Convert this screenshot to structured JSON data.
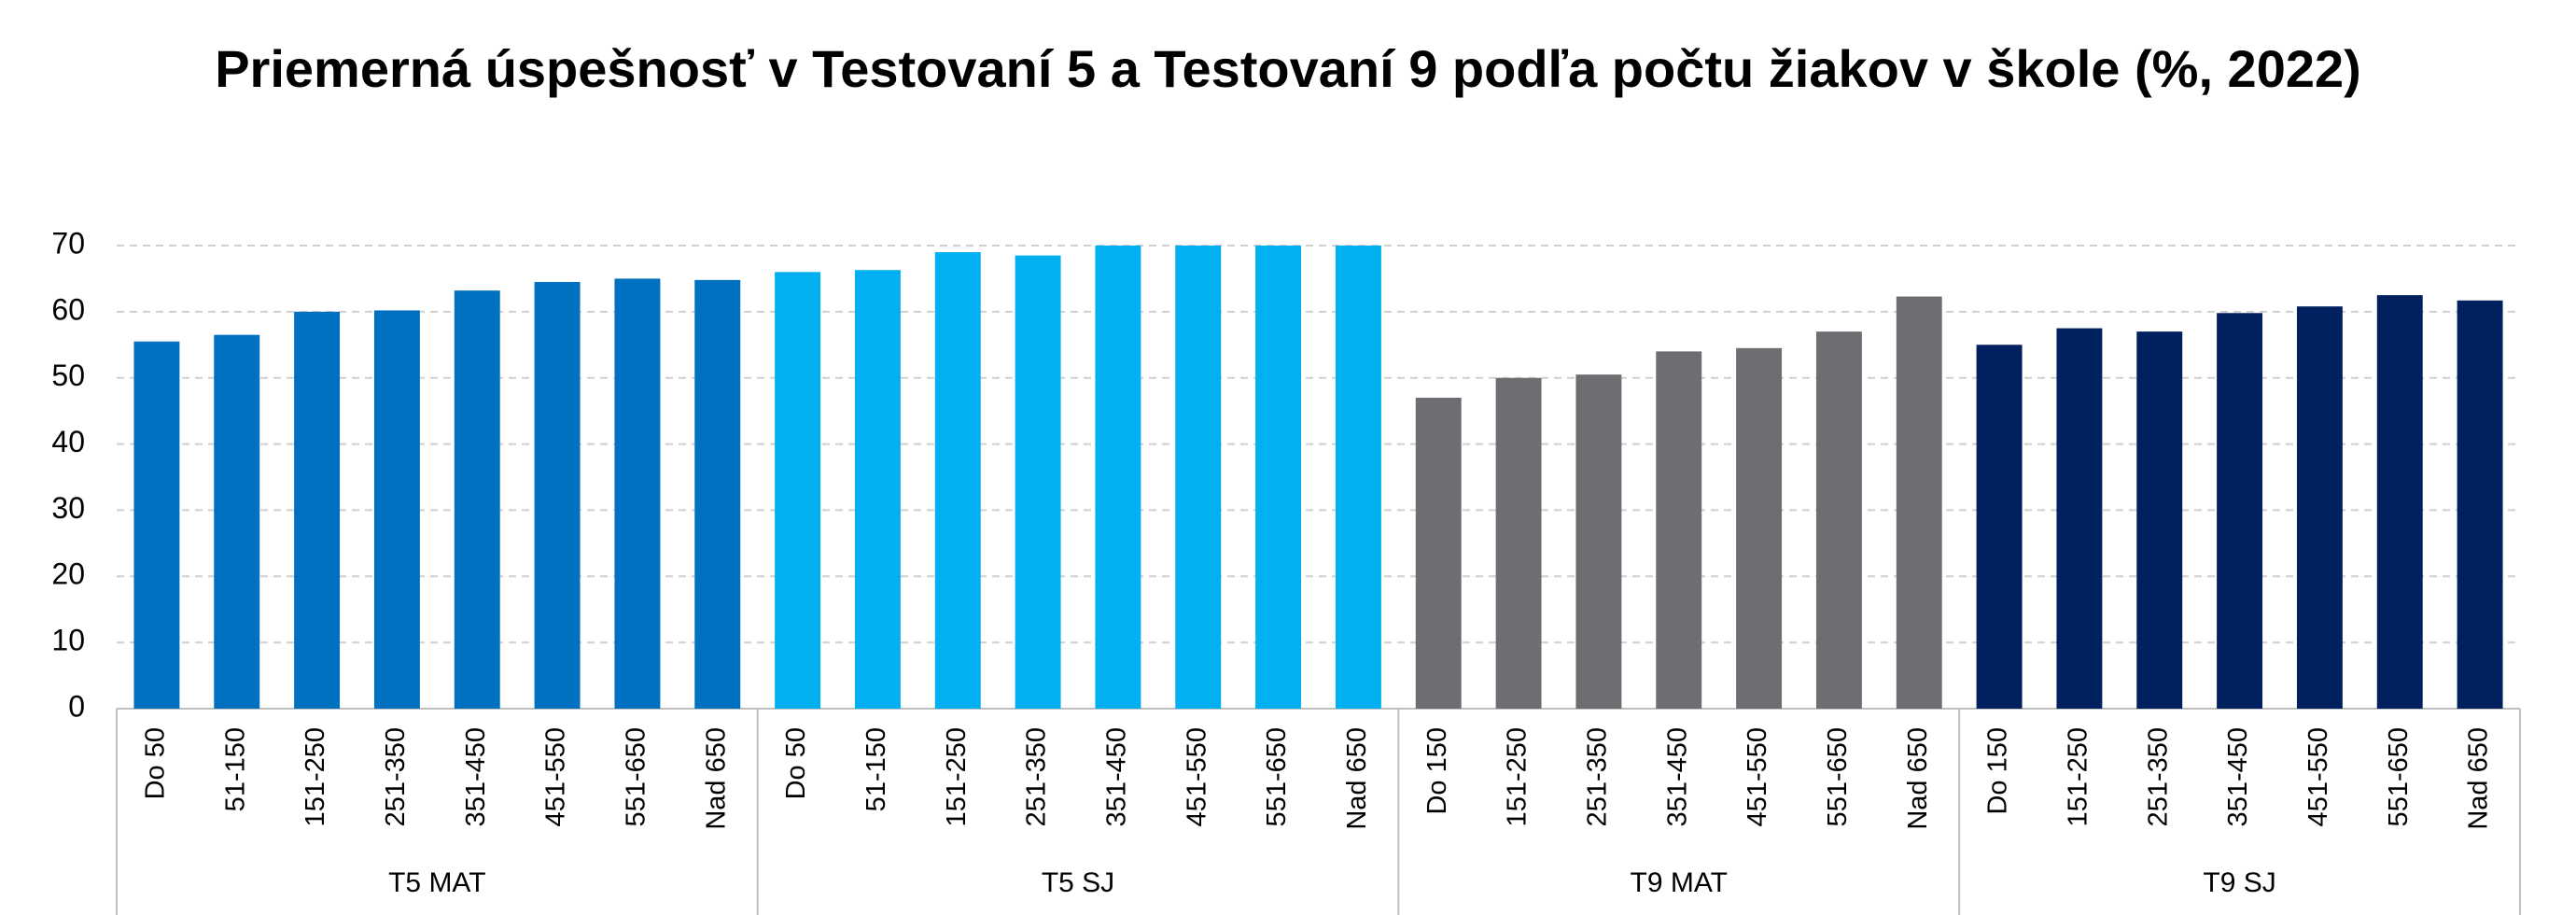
{
  "chart_data": {
    "type": "bar",
    "title": "Priemerná úspešnosť v Testovaní 5 a Testovaní 9 podľa počtu žiakov v škole (%, 2022)",
    "ylim": [
      0,
      70
    ],
    "yticks": [
      0,
      10,
      20,
      30,
      40,
      50,
      60,
      70
    ],
    "grid": true,
    "series": [
      {
        "name": "T5 MAT",
        "color": "#0070c0",
        "categories": [
          "Do 50",
          "51-150",
          "151-250",
          "251-350",
          "351-450",
          "451-550",
          "551-650",
          "Nad 650"
        ],
        "values": [
          55.5,
          56.5,
          60,
          60.2,
          63.2,
          64.5,
          65,
          64.8
        ]
      },
      {
        "name": "T5 SJ",
        "color": "#00b0f0",
        "categories": [
          "Do 50",
          "51-150",
          "151-250",
          "251-350",
          "351-450",
          "451-550",
          "551-650",
          "Nad 650"
        ],
        "values": [
          66,
          66.3,
          69,
          68.5,
          70,
          70,
          70,
          70
        ]
      },
      {
        "name": "T9 MAT",
        "color": "#6d6e71",
        "categories": [
          "Do 150",
          "151-250",
          "251-350",
          "351-450",
          "451-550",
          "551-650",
          "Nad 650"
        ],
        "values": [
          47,
          50,
          50.5,
          54,
          54.5,
          57,
          62.3
        ]
      },
      {
        "name": "T9 SJ",
        "color": "#002060",
        "categories": [
          "Do 150",
          "151-250",
          "251-350",
          "351-450",
          "451-550",
          "551-650",
          "Nad 650"
        ],
        "values": [
          55,
          57.5,
          57,
          59.8,
          60.8,
          62.5,
          61.7
        ]
      }
    ]
  }
}
